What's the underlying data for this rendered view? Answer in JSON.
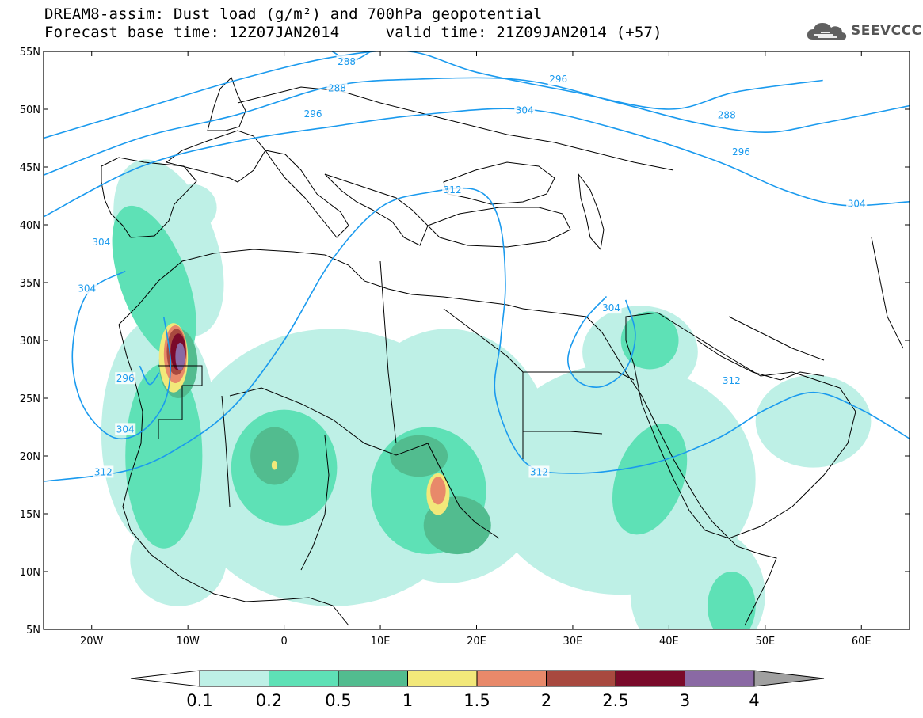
{
  "header": {
    "title_line1": "DREAM8-assim: Dust load (g/m²) and 700hPa geopotential",
    "title_line2": "Forecast base time: 12Z07JAN2014     valid time: 21Z09JAN2014 (+57)",
    "logo_text": "SEEVCCC"
  },
  "map": {
    "lon_range": [
      -25,
      65
    ],
    "lat_range": [
      5,
      55
    ],
    "lat_ticks": [
      {
        "value": 55,
        "label": "55N"
      },
      {
        "value": 50,
        "label": "50N"
      },
      {
        "value": 45,
        "label": "45N"
      },
      {
        "value": 40,
        "label": "40N"
      },
      {
        "value": 35,
        "label": "35N"
      },
      {
        "value": 30,
        "label": "30N"
      },
      {
        "value": 25,
        "label": "25N"
      },
      {
        "value": 20,
        "label": "20N"
      },
      {
        "value": 15,
        "label": "15N"
      },
      {
        "value": 10,
        "label": "10N"
      },
      {
        "value": 5,
        "label": "5N"
      }
    ],
    "lon_ticks": [
      {
        "value": -20,
        "label": "20W"
      },
      {
        "value": -10,
        "label": "10W"
      },
      {
        "value": 0,
        "label": "0"
      },
      {
        "value": 10,
        "label": "10E"
      },
      {
        "value": 20,
        "label": "20E"
      },
      {
        "value": 30,
        "label": "30E"
      },
      {
        "value": 40,
        "label": "40E"
      },
      {
        "value": 50,
        "label": "50E"
      },
      {
        "value": 60,
        "label": "60E"
      }
    ],
    "contour_color": "#1a9aee",
    "contours": [
      {
        "value": "288",
        "points": [
          [
            -25,
            47.5
          ],
          [
            -15,
            50
          ],
          [
            -5,
            52.5
          ],
          [
            5,
            54.5
          ],
          [
            13,
            55
          ],
          [
            20,
            53.2
          ],
          [
            30,
            51.5
          ],
          [
            40,
            50
          ],
          [
            47,
            51.5
          ],
          [
            56,
            52.5
          ]
        ]
      },
      {
        "value": "288",
        "points": [
          [
            5,
            55
          ],
          [
            7,
            54.2
          ],
          [
            9,
            55
          ]
        ]
      },
      {
        "value": "296",
        "points": [
          [
            -25,
            44.3
          ],
          [
            -15,
            47.5
          ],
          [
            -5,
            49.5
          ],
          [
            5,
            52
          ],
          [
            14,
            52.6
          ],
          [
            25,
            52.5
          ],
          [
            35,
            50.5
          ],
          [
            43,
            48.8
          ],
          [
            50,
            48
          ],
          [
            56,
            48.8
          ],
          [
            65,
            50.3
          ]
        ]
      },
      {
        "value": "304",
        "points": [
          [
            -25,
            40.7
          ],
          [
            -15,
            45
          ],
          [
            -5,
            47.2
          ],
          [
            5,
            48.5
          ],
          [
            14,
            49.5
          ],
          [
            25,
            50
          ],
          [
            35,
            48.2
          ],
          [
            45,
            45.5
          ],
          [
            52,
            43
          ],
          [
            58,
            41.7
          ],
          [
            65,
            42
          ]
        ]
      },
      {
        "value": "312",
        "points": [
          [
            -25,
            17.8
          ],
          [
            -16,
            18.8
          ],
          [
            -10,
            21.2
          ],
          [
            -5,
            24.5
          ],
          [
            0,
            30
          ],
          [
            5,
            37
          ],
          [
            10,
            41.5
          ],
          [
            15,
            42.8
          ],
          [
            20,
            43
          ],
          [
            22.3,
            40.5
          ],
          [
            23,
            35
          ],
          [
            22.5,
            30
          ],
          [
            22,
            25
          ],
          [
            25,
            19.5
          ],
          [
            30,
            18.5
          ],
          [
            38,
            19.3
          ],
          [
            45,
            21.5
          ],
          [
            50,
            24
          ],
          [
            55,
            25.5
          ],
          [
            60,
            24
          ],
          [
            65,
            21.5
          ]
        ]
      },
      {
        "value": "304",
        "points": [
          [
            -16.5,
            36
          ],
          [
            -20.5,
            34
          ],
          [
            -22,
            29
          ],
          [
            -21,
            24.5
          ],
          [
            -18,
            21.7
          ],
          [
            -15,
            22
          ],
          [
            -12.5,
            24.5
          ],
          [
            -11.8,
            28
          ],
          [
            -12.5,
            32
          ]
        ]
      },
      {
        "value": "296",
        "points": [
          [
            -15,
            27.8
          ],
          [
            -14,
            26.2
          ],
          [
            -13,
            27.2
          ]
        ]
      },
      {
        "value": "304",
        "points": [
          [
            33.5,
            33.8
          ],
          [
            31,
            31.5
          ],
          [
            29.5,
            28.5
          ],
          [
            30.5,
            26.5
          ],
          [
            33,
            26
          ],
          [
            35.5,
            27.5
          ],
          [
            36.5,
            30.5
          ],
          [
            35.5,
            33.5
          ]
        ]
      }
    ],
    "contour_labels": [
      {
        "text": "288",
        "lon": 6.5,
        "lat": 54.1
      },
      {
        "text": "288",
        "lon": 5.5,
        "lat": 51.8
      },
      {
        "text": "296",
        "lon": 28.5,
        "lat": 52.6
      },
      {
        "text": "288",
        "lon": 46,
        "lat": 49.5
      },
      {
        "text": "296",
        "lon": 3,
        "lat": 49.6
      },
      {
        "text": "304",
        "lon": 25,
        "lat": 49.9
      },
      {
        "text": "296",
        "lon": 47.5,
        "lat": 46.3
      },
      {
        "text": "304",
        "lon": 59.5,
        "lat": 41.8
      },
      {
        "text": "312",
        "lon": 17.5,
        "lat": 43
      },
      {
        "text": "304",
        "lon": -19,
        "lat": 38.5
      },
      {
        "text": "304",
        "lon": -20.5,
        "lat": 34.5
      },
      {
        "text": "304",
        "lon": 34,
        "lat": 32.8
      },
      {
        "text": "296",
        "lon": -16.5,
        "lat": 26.7
      },
      {
        "text": "304",
        "lon": -16.5,
        "lat": 22.3
      },
      {
        "text": "312",
        "lon": 46.5,
        "lat": 26.5
      },
      {
        "text": "312",
        "lon": -18.8,
        "lat": 18.6
      },
      {
        "text": "312",
        "lon": 26.5,
        "lat": 18.6
      }
    ]
  },
  "dust_fields": [
    {
      "level": "0.1",
      "color": "#bef0e6",
      "center": [
        -12,
        38
      ],
      "radii": [
        5,
        8
      ],
      "rot": -20
    },
    {
      "level": "0.1",
      "color": "#bef0e6",
      "center": [
        -13,
        22
      ],
      "radii": [
        6,
        10
      ],
      "rot": 0
    },
    {
      "level": "0.1",
      "color": "#bef0e6",
      "center": [
        -11,
        11
      ],
      "radii": [
        5,
        4
      ],
      "rot": 0
    },
    {
      "level": "0.1",
      "color": "#bef0e6",
      "center": [
        5,
        19
      ],
      "radii": [
        16,
        12
      ],
      "rot": 0
    },
    {
      "level": "0.1",
      "color": "#bef0e6",
      "center": [
        17,
        20
      ],
      "radii": [
        11,
        11
      ],
      "rot": 0
    },
    {
      "level": "0.1",
      "color": "#bef0e6",
      "center": [
        35,
        18
      ],
      "radii": [
        14,
        10
      ],
      "rot": 0
    },
    {
      "level": "0.1",
      "color": "#bef0e6",
      "center": [
        37,
        29
      ],
      "radii": [
        6,
        4
      ],
      "rot": 0
    },
    {
      "level": "0.1",
      "color": "#bef0e6",
      "center": [
        43,
        8
      ],
      "radii": [
        7,
        6
      ],
      "rot": 0
    },
    {
      "level": "0.1",
      "color": "#bef0e6",
      "center": [
        55,
        23
      ],
      "radii": [
        6,
        4
      ],
      "rot": 0
    },
    {
      "level": "0.1",
      "color": "#bef0e6",
      "center": [
        -9.5,
        41.5
      ],
      "radii": [
        2.5,
        2
      ],
      "rot": 0
    },
    {
      "level": "0.2",
      "color": "#5ee1b6",
      "center": [
        -13.5,
        35
      ],
      "radii": [
        3.5,
        7
      ],
      "rot": -20
    },
    {
      "level": "0.2",
      "color": "#5ee1b6",
      "center": [
        -12.5,
        20
      ],
      "radii": [
        4,
        8
      ],
      "rot": 0
    },
    {
      "level": "0.2",
      "color": "#5ee1b6",
      "center": [
        0,
        19
      ],
      "radii": [
        5.5,
        5
      ],
      "rot": 0
    },
    {
      "level": "0.2",
      "color": "#5ee1b6",
      "center": [
        15,
        17
      ],
      "radii": [
        6,
        5.5
      ],
      "rot": 0
    },
    {
      "level": "0.2",
      "color": "#5ee1b6",
      "center": [
        38,
        18
      ],
      "radii": [
        3.5,
        5
      ],
      "rot": 20
    },
    {
      "level": "0.2",
      "color": "#5ee1b6",
      "center": [
        46.5,
        7
      ],
      "radii": [
        2.5,
        3
      ],
      "rot": 0
    },
    {
      "level": "0.2",
      "color": "#5ee1b6",
      "center": [
        38,
        30
      ],
      "radii": [
        3,
        2.5
      ],
      "rot": 0
    },
    {
      "level": "0.5",
      "color": "#52bc8f",
      "center": [
        -11,
        28
      ],
      "radii": [
        2,
        3
      ],
      "rot": 0
    },
    {
      "level": "0.5",
      "color": "#52bc8f",
      "center": [
        -1,
        20
      ],
      "radii": [
        2.5,
        2.5
      ],
      "rot": 0
    },
    {
      "level": "0.5",
      "color": "#52bc8f",
      "center": [
        14,
        20
      ],
      "radii": [
        3,
        1.8
      ],
      "rot": 0
    },
    {
      "level": "0.5",
      "color": "#52bc8f",
      "center": [
        18,
        14
      ],
      "radii": [
        3.5,
        2.5
      ],
      "rot": 0
    },
    {
      "level": "1",
      "color": "#f2e87a",
      "center": [
        -11.5,
        28.5
      ],
      "radii": [
        1.5,
        3
      ],
      "rot": 0
    },
    {
      "level": "1",
      "color": "#f2e87a",
      "center": [
        16,
        16.7
      ],
      "radii": [
        1.2,
        1.8
      ],
      "rot": 0
    },
    {
      "level": "1",
      "color": "#f2e87a",
      "center": [
        -1,
        19.2
      ],
      "radii": [
        0.3,
        0.4
      ],
      "rot": 0
    },
    {
      "level": "1.5",
      "color": "#e8896a",
      "center": [
        -11.3,
        28.8
      ],
      "radii": [
        1.2,
        2.5
      ],
      "rot": 0
    },
    {
      "level": "1.5",
      "color": "#e8896a",
      "center": [
        16,
        17
      ],
      "radii": [
        0.8,
        1.2
      ],
      "rot": 0
    },
    {
      "level": "2",
      "color": "#a8493f",
      "center": [
        -11.2,
        29
      ],
      "radii": [
        1,
        2
      ],
      "rot": 0
    },
    {
      "level": "2.5",
      "color": "#7a0a2a",
      "center": [
        -11,
        29
      ],
      "radii": [
        0.8,
        1.6
      ],
      "rot": 0
    },
    {
      "level": "3",
      "color": "#8a69a4",
      "center": [
        -10.8,
        28.6
      ],
      "radii": [
        0.5,
        1.2
      ],
      "rot": 0
    }
  ],
  "colorbar": {
    "levels": [
      "0.1",
      "0.2",
      "0.5",
      "1",
      "1.5",
      "2",
      "2.5",
      "3",
      "4"
    ],
    "colors": [
      "#bef0e6",
      "#5ee1b6",
      "#52bc8f",
      "#f2e87a",
      "#e8896a",
      "#a8493f",
      "#7a0a2a",
      "#8a69a4"
    ],
    "under_color": "#ffffff",
    "over_color": "#a0a0a0"
  }
}
